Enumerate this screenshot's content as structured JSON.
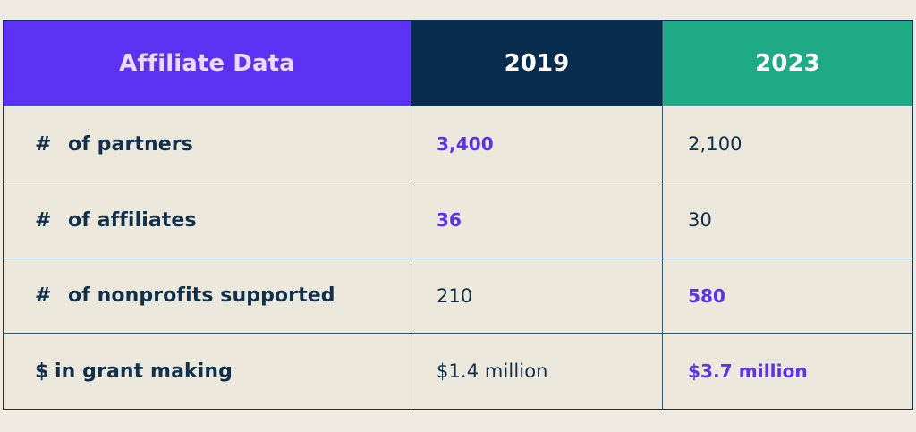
{
  "chart_data": {
    "type": "table",
    "columns": [
      "Affiliate Data",
      "2019",
      "2023"
    ],
    "rows": [
      {
        "symbol": "#",
        "label": "of partners",
        "values": [
          "3,400",
          "2,100"
        ],
        "highlight": [
          true,
          false
        ]
      },
      {
        "symbol": "#",
        "label": "of affiliates",
        "values": [
          "36",
          "30"
        ],
        "highlight": [
          true,
          false
        ]
      },
      {
        "symbol": "#",
        "label": "of nonprofits supported",
        "values": [
          "210",
          "580"
        ],
        "highlight": [
          false,
          true
        ]
      },
      {
        "symbol": "$",
        "label": "in grant making",
        "values": [
          "$1.4 million",
          "$3.7 million"
        ],
        "highlight": [
          false,
          true
        ]
      }
    ]
  },
  "colors": {
    "page_background": "#efebe0",
    "header_label_bg": "#5b31f2",
    "header_2019_bg": "#072c4e",
    "header_2023_bg": "#1eaa85",
    "highlight_text": "#5b31f2",
    "body_text": "#10304c"
  }
}
